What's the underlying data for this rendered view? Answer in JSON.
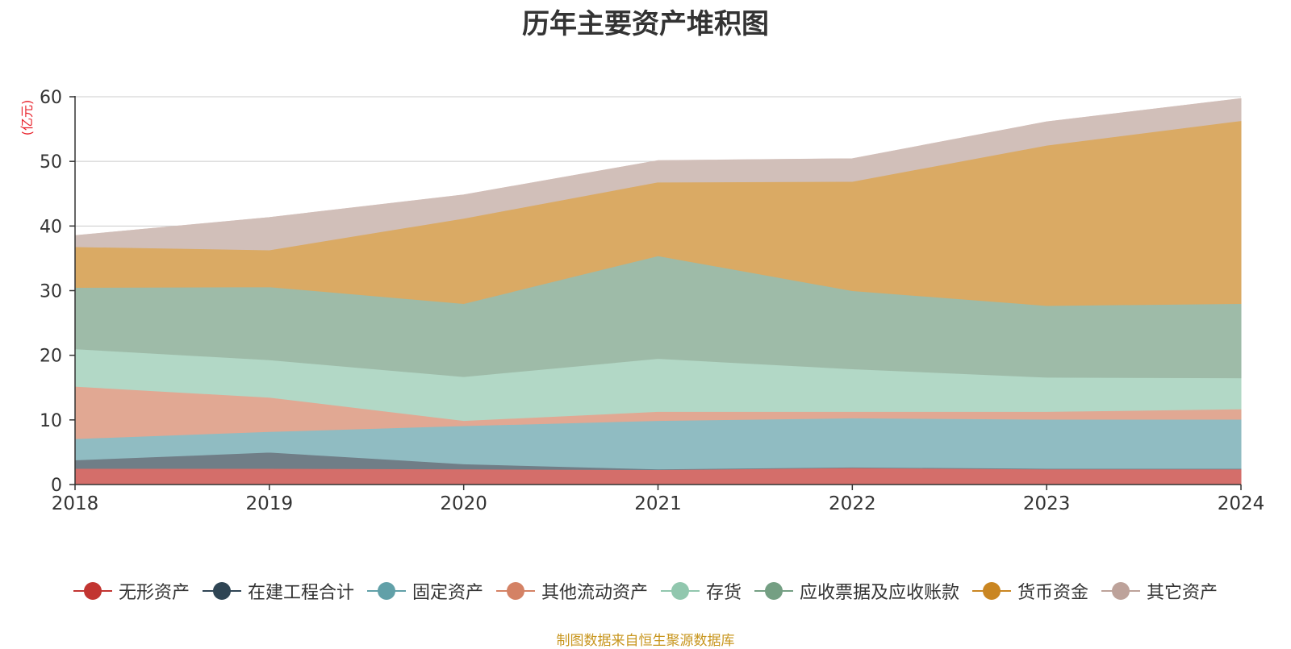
{
  "colors": {
    "unit": "#e8232c",
    "source": "#c8961e",
    "grid": "#cccccc",
    "axis": "#333333"
  },
  "chart_data": {
    "type": "area",
    "stacked": true,
    "title": "历年主要资产堆积图",
    "unit_label": "(亿元)",
    "source_note": "制图数据来自恒生聚源数据库",
    "categories": [
      "2018",
      "2019",
      "2020",
      "2021",
      "2022",
      "2023",
      "2024"
    ],
    "ylim": [
      0,
      60
    ],
    "yticks": [
      0,
      10,
      20,
      30,
      40,
      50,
      60
    ],
    "grid": true,
    "legend_position": "bottom",
    "series": [
      {
        "name": "无形资产",
        "color": "#c23531",
        "fill": "#d46e6a",
        "values": [
          2.5,
          2.5,
          2.4,
          2.3,
          2.6,
          2.4,
          2.4
        ]
      },
      {
        "name": "在建工程合计",
        "color": "#2f4554",
        "fill": "#707e87",
        "values": [
          1.3,
          2.5,
          0.8,
          0.1,
          0.1,
          0.1,
          0.1
        ]
      },
      {
        "name": "固定资产",
        "color": "#61a0a8",
        "fill": "#90bcc2",
        "values": [
          3.3,
          3.2,
          5.9,
          7.5,
          7.6,
          7.6,
          7.6
        ]
      },
      {
        "name": "其他流动资产",
        "color": "#d48265",
        "fill": "#e1a893",
        "values": [
          8.1,
          5.3,
          0.8,
          1.4,
          1.0,
          1.2,
          1.6
        ]
      },
      {
        "name": "存货",
        "color": "#91c7ae",
        "fill": "#b2d8c6",
        "values": [
          5.8,
          5.8,
          6.8,
          8.2,
          6.6,
          5.3,
          4.8
        ]
      },
      {
        "name": "应收票据及应收账款",
        "color": "#749f83",
        "fill": "#9ebba8",
        "values": [
          9.5,
          11.3,
          11.3,
          15.9,
          12.1,
          11.1,
          11.5
        ]
      },
      {
        "name": "货币资金",
        "color": "#ca8622",
        "fill": "#daaa64",
        "values": [
          6.3,
          5.7,
          13.2,
          11.4,
          16.9,
          24.8,
          28.3
        ]
      },
      {
        "name": "其它资产",
        "color": "#bda29a",
        "fill": "#d1bfb9",
        "values": [
          1.7,
          5.0,
          3.6,
          3.3,
          3.5,
          3.6,
          3.4
        ]
      }
    ]
  }
}
